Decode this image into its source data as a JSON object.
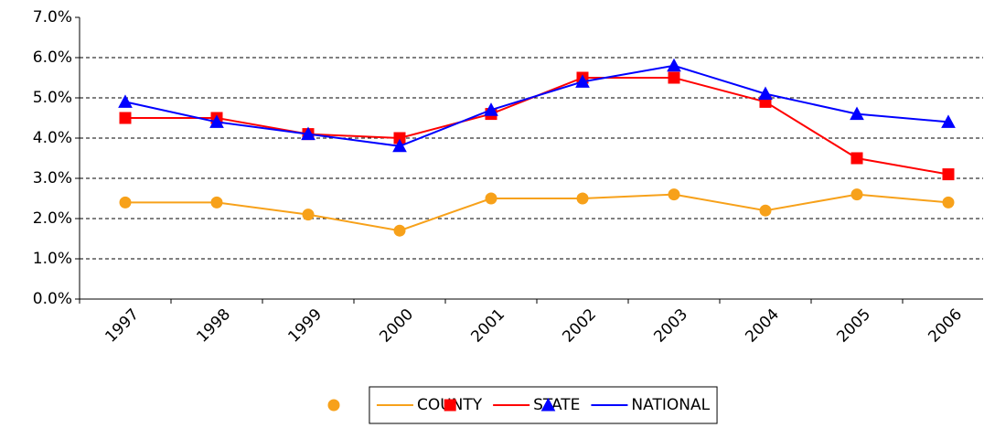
{
  "chart_data": {
    "type": "line",
    "categories": [
      "1997",
      "1998",
      "1999",
      "2000",
      "2001",
      "2002",
      "2003",
      "2004",
      "2005",
      "2006"
    ],
    "series": [
      {
        "name": "COUNTY",
        "color": "#f7a11a",
        "marker": "circle",
        "values": [
          2.4,
          2.4,
          2.1,
          1.7,
          2.5,
          2.5,
          2.6,
          2.2,
          2.6,
          2.4
        ]
      },
      {
        "name": "STATE",
        "color": "#ff0000",
        "marker": "square",
        "values": [
          4.5,
          4.5,
          4.1,
          4.0,
          4.6,
          5.5,
          5.5,
          4.9,
          3.5,
          3.1
        ]
      },
      {
        "name": "NATIONAL",
        "color": "#0000ff",
        "marker": "triangle",
        "values": [
          4.9,
          4.4,
          4.1,
          3.8,
          4.7,
          5.4,
          5.8,
          5.1,
          4.6,
          4.4
        ]
      }
    ],
    "ylim": [
      0,
      7
    ],
    "yticks": [
      {
        "value": 0,
        "label": "0.0%"
      },
      {
        "value": 1,
        "label": "1.0%"
      },
      {
        "value": 2,
        "label": "2.0%"
      },
      {
        "value": 3,
        "label": "3.0%"
      },
      {
        "value": 4,
        "label": "4.0%"
      },
      {
        "value": 5,
        "label": "5.0%"
      },
      {
        "value": 6,
        "label": "6.0%"
      },
      {
        "value": 7,
        "label": "7.0%"
      }
    ],
    "grid": true,
    "legend": "bottom"
  }
}
